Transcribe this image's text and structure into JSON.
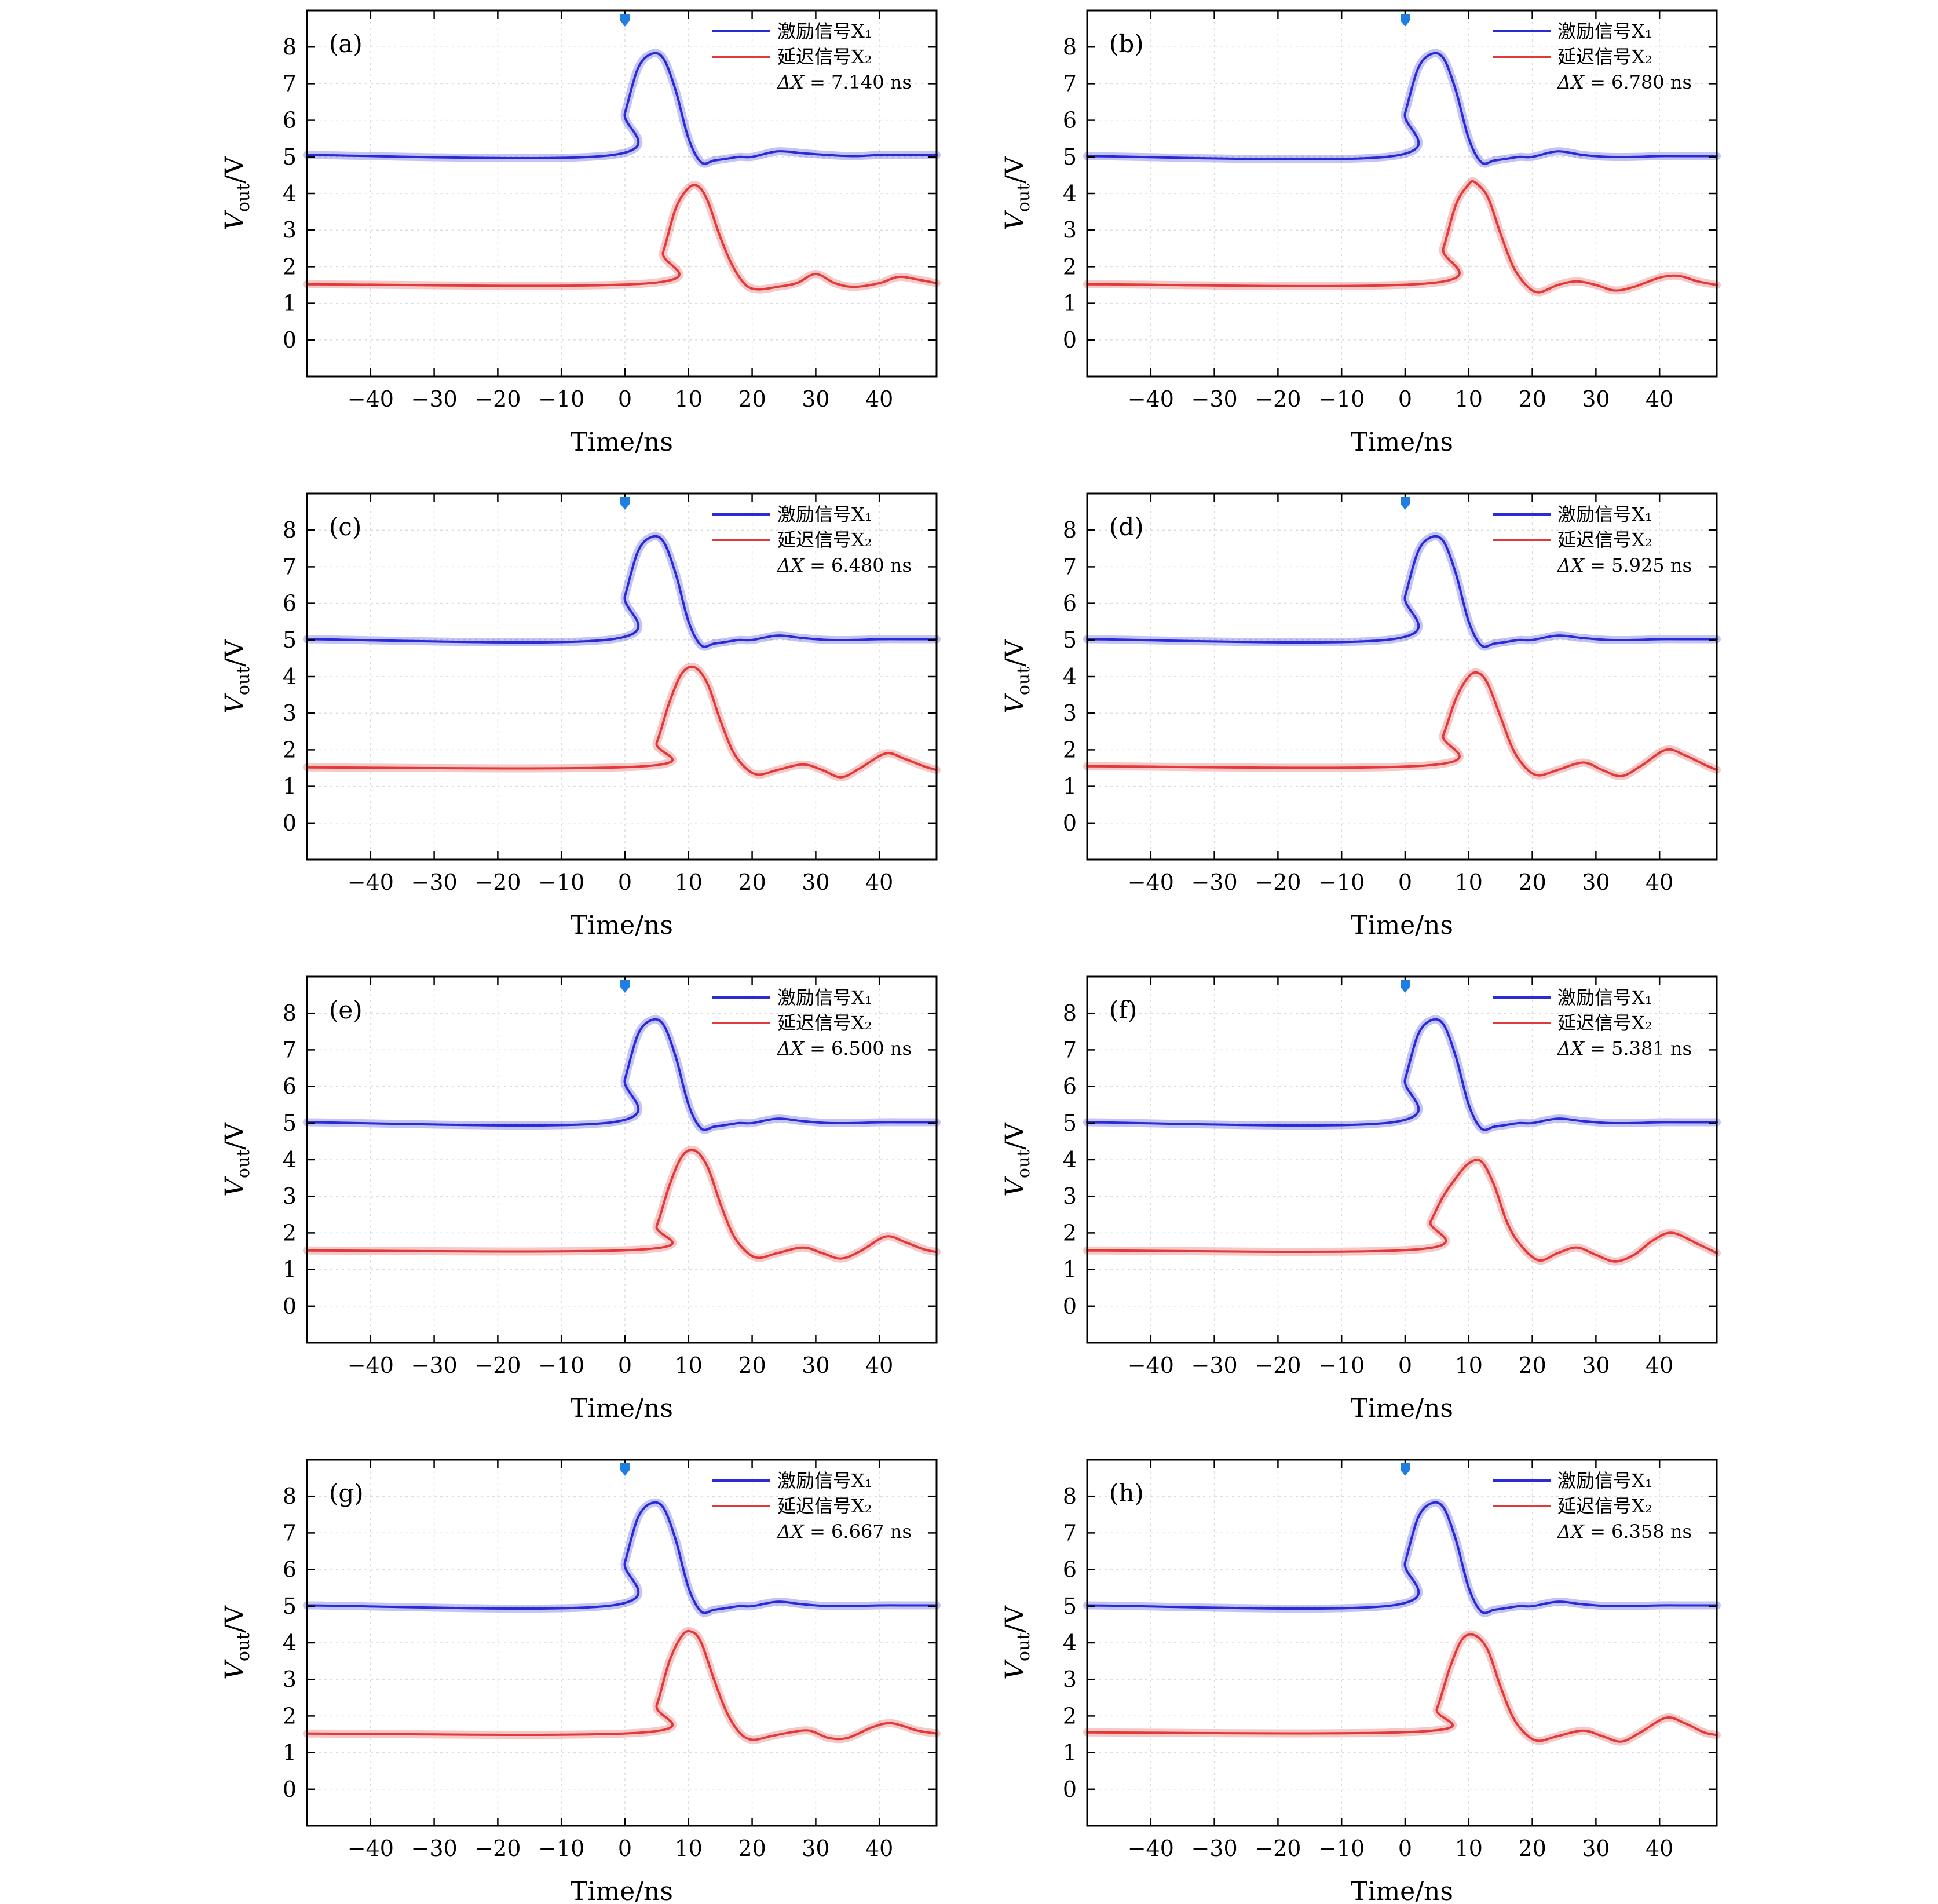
{
  "chart_data": [
    {
      "type": "line",
      "panel_label": "(a)",
      "xlabel": "Time/ns",
      "ylabel_main": "V",
      "ylabel_sub": "out",
      "ylabel_unit": "/V",
      "xlim": [
        -50,
        49
      ],
      "ylim": [
        -1,
        9
      ],
      "x_ticks": [
        -40,
        -30,
        -20,
        -10,
        0,
        10,
        20,
        30,
        40
      ],
      "y_ticks": [
        0,
        1,
        2,
        3,
        4,
        5,
        6,
        7,
        8
      ],
      "grid": true,
      "legend_placement": "top-right",
      "series": [
        {
          "name": "激励信号X₁",
          "color": "#2b2bd6",
          "x": [
            -50,
            -2,
            0,
            2,
            4,
            6,
            8,
            10,
            12,
            14,
            16,
            18,
            20,
            24,
            28,
            32,
            36,
            40,
            45,
            49
          ],
          "y": [
            5.05,
            5.05,
            6.2,
            7.4,
            7.8,
            7.7,
            6.8,
            5.5,
            4.85,
            4.9,
            4.95,
            5.0,
            5.0,
            5.15,
            5.1,
            5.05,
            5.02,
            5.05,
            5.05,
            5.05
          ]
        },
        {
          "name": "延迟信号X₂",
          "color": "#e03a3a",
          "x": [
            -50,
            4,
            6,
            8,
            10,
            11.5,
            13,
            15,
            17,
            19,
            21,
            24,
            27,
            30,
            33,
            36,
            40,
            43,
            46,
            49
          ],
          "y": [
            1.52,
            1.55,
            2.4,
            3.6,
            4.15,
            4.2,
            3.8,
            2.8,
            2.0,
            1.5,
            1.38,
            1.45,
            1.55,
            1.8,
            1.55,
            1.45,
            1.55,
            1.72,
            1.65,
            1.55
          ]
        }
      ],
      "annotation": {
        "label": "ΔX = ",
        "value": "7.140",
        "unit": "ns"
      }
    },
    {
      "type": "line",
      "panel_label": "(b)",
      "xlabel": "Time/ns",
      "ylabel_main": "V",
      "ylabel_sub": "out",
      "ylabel_unit": "/V",
      "xlim": [
        -50,
        49
      ],
      "ylim": [
        -1,
        9
      ],
      "x_ticks": [
        -40,
        -30,
        -20,
        -10,
        0,
        10,
        20,
        30,
        40
      ],
      "y_ticks": [
        0,
        1,
        2,
        3,
        4,
        5,
        6,
        7,
        8
      ],
      "grid": true,
      "legend_placement": "top-right",
      "series": [
        {
          "name": "激励信号X₁",
          "color": "#2b2bd6",
          "x": [
            -50,
            -2,
            0,
            2,
            4,
            6,
            8,
            10,
            12,
            14,
            16,
            18,
            20,
            24,
            28,
            32,
            36,
            40,
            45,
            49
          ],
          "y": [
            5.02,
            5.02,
            6.2,
            7.4,
            7.8,
            7.7,
            6.8,
            5.5,
            4.85,
            4.9,
            4.95,
            5.0,
            5.0,
            5.15,
            5.05,
            5.0,
            5.0,
            5.02,
            5.02,
            5.02
          ]
        },
        {
          "name": "延迟信号X₂",
          "color": "#e03a3a",
          "x": [
            -50,
            4,
            6,
            8,
            10,
            11,
            13,
            15,
            17,
            19,
            21,
            24,
            27,
            30,
            33,
            36,
            40,
            43,
            46,
            49
          ],
          "y": [
            1.52,
            1.55,
            2.5,
            3.7,
            4.25,
            4.3,
            3.9,
            2.9,
            2.0,
            1.5,
            1.3,
            1.5,
            1.6,
            1.5,
            1.35,
            1.45,
            1.7,
            1.75,
            1.6,
            1.5
          ]
        }
      ],
      "annotation": {
        "label": "ΔX = ",
        "value": "6.780",
        "unit": "ns"
      }
    },
    {
      "type": "line",
      "panel_label": "(c)",
      "xlabel": "Time/ns",
      "ylabel_main": "V",
      "ylabel_sub": "out",
      "ylabel_unit": "/V",
      "xlim": [
        -50,
        49
      ],
      "ylim": [
        -1,
        9
      ],
      "x_ticks": [
        -40,
        -30,
        -20,
        -10,
        0,
        10,
        20,
        30,
        40
      ],
      "y_ticks": [
        0,
        1,
        2,
        3,
        4,
        5,
        6,
        7,
        8
      ],
      "grid": true,
      "legend_placement": "top-right",
      "series": [
        {
          "name": "激励信号X₁",
          "color": "#2b2bd6",
          "x": [
            -50,
            -2,
            0,
            2,
            4,
            6,
            8,
            10,
            12,
            14,
            16,
            18,
            20,
            24,
            28,
            32,
            36,
            40,
            45,
            49
          ],
          "y": [
            5.02,
            5.02,
            6.2,
            7.4,
            7.8,
            7.7,
            6.8,
            5.5,
            4.85,
            4.9,
            4.95,
            5.0,
            5.0,
            5.12,
            5.05,
            5.0,
            5.0,
            5.02,
            5.02,
            5.02
          ]
        },
        {
          "name": "延迟信号X₂",
          "color": "#e03a3a",
          "x": [
            -50,
            3,
            5,
            7,
            9,
            11,
            13,
            15,
            17,
            19,
            21,
            24,
            28,
            31,
            34,
            37,
            41,
            44,
            47,
            49
          ],
          "y": [
            1.52,
            1.55,
            2.2,
            3.3,
            4.1,
            4.25,
            3.8,
            2.8,
            1.95,
            1.5,
            1.32,
            1.45,
            1.6,
            1.45,
            1.25,
            1.5,
            1.9,
            1.75,
            1.55,
            1.45
          ]
        }
      ],
      "annotation": {
        "label": "ΔX = ",
        "value": "6.480",
        "unit": "ns"
      }
    },
    {
      "type": "line",
      "panel_label": "(d)",
      "xlabel": "Time/ns",
      "ylabel_main": "V",
      "ylabel_sub": "out",
      "ylabel_unit": "/V",
      "xlim": [
        -50,
        49
      ],
      "ylim": [
        -1,
        9
      ],
      "x_ticks": [
        -40,
        -30,
        -20,
        -10,
        0,
        10,
        20,
        30,
        40
      ],
      "y_ticks": [
        0,
        1,
        2,
        3,
        4,
        5,
        6,
        7,
        8
      ],
      "grid": true,
      "legend_placement": "top-right",
      "series": [
        {
          "name": "激励信号X₁",
          "color": "#2b2bd6",
          "x": [
            -50,
            -2,
            0,
            2,
            4,
            6,
            8,
            10,
            12,
            14,
            16,
            18,
            20,
            24,
            28,
            32,
            36,
            40,
            45,
            49
          ],
          "y": [
            5.02,
            5.02,
            6.2,
            7.4,
            7.8,
            7.7,
            6.8,
            5.5,
            4.85,
            4.9,
            4.95,
            5.0,
            5.0,
            5.12,
            5.05,
            5.0,
            5.0,
            5.02,
            5.02,
            5.02
          ]
        },
        {
          "name": "延迟信号X₂",
          "color": "#e03a3a",
          "x": [
            -50,
            4,
            6,
            8,
            10,
            11.5,
            13,
            15,
            17,
            19,
            21,
            24,
            28,
            31,
            34,
            37,
            41,
            44,
            47,
            49
          ],
          "y": [
            1.55,
            1.58,
            2.4,
            3.4,
            4.0,
            4.1,
            3.8,
            2.9,
            2.0,
            1.5,
            1.3,
            1.45,
            1.65,
            1.45,
            1.28,
            1.55,
            2.0,
            1.85,
            1.6,
            1.45
          ]
        }
      ],
      "annotation": {
        "label": "ΔX = ",
        "value": "5.925",
        "unit": "ns"
      }
    },
    {
      "type": "line",
      "panel_label": "(e)",
      "xlabel": "Time/ns",
      "ylabel_main": "V",
      "ylabel_sub": "out",
      "ylabel_unit": "/V",
      "xlim": [
        -50,
        49
      ],
      "ylim": [
        -1,
        9
      ],
      "x_ticks": [
        -40,
        -30,
        -20,
        -10,
        0,
        10,
        20,
        30,
        40
      ],
      "y_ticks": [
        0,
        1,
        2,
        3,
        4,
        5,
        6,
        7,
        8
      ],
      "grid": true,
      "legend_placement": "top-right",
      "series": [
        {
          "name": "激励信号X₁",
          "color": "#2b2bd6",
          "x": [
            -50,
            -2,
            0,
            2,
            4,
            6,
            8,
            10,
            12,
            14,
            16,
            18,
            20,
            24,
            28,
            32,
            36,
            40,
            45,
            49
          ],
          "y": [
            5.02,
            5.02,
            6.2,
            7.4,
            7.8,
            7.7,
            6.8,
            5.5,
            4.85,
            4.9,
            4.95,
            5.0,
            5.0,
            5.12,
            5.05,
            5.0,
            5.0,
            5.02,
            5.02,
            5.02
          ]
        },
        {
          "name": "延迟信号X₂",
          "color": "#e03a3a",
          "x": [
            -50,
            3,
            5,
            7,
            9,
            11,
            13,
            15,
            17,
            19,
            21,
            24,
            28,
            31,
            34,
            37,
            41,
            44,
            47,
            49
          ],
          "y": [
            1.52,
            1.55,
            2.2,
            3.3,
            4.1,
            4.25,
            3.8,
            2.8,
            1.95,
            1.5,
            1.32,
            1.45,
            1.6,
            1.45,
            1.3,
            1.5,
            1.9,
            1.75,
            1.55,
            1.48
          ]
        }
      ],
      "annotation": {
        "label": "ΔX = ",
        "value": "6.500",
        "unit": "ns"
      }
    },
    {
      "type": "line",
      "panel_label": "(f)",
      "xlabel": "Time/ns",
      "ylabel_main": "V",
      "ylabel_sub": "out",
      "ylabel_unit": "/V",
      "xlim": [
        -50,
        49
      ],
      "ylim": [
        -1,
        9
      ],
      "x_ticks": [
        -40,
        -30,
        -20,
        -10,
        0,
        10,
        20,
        30,
        40
      ],
      "y_ticks": [
        0,
        1,
        2,
        3,
        4,
        5,
        6,
        7,
        8
      ],
      "grid": true,
      "legend_placement": "top-right",
      "series": [
        {
          "name": "激励信号X₁",
          "color": "#2b2bd6",
          "x": [
            -50,
            -2,
            0,
            2,
            4,
            6,
            8,
            10,
            12,
            14,
            16,
            18,
            20,
            24,
            28,
            32,
            36,
            40,
            45,
            49
          ],
          "y": [
            5.02,
            5.02,
            6.2,
            7.4,
            7.8,
            7.7,
            6.8,
            5.5,
            4.85,
            4.9,
            4.95,
            5.0,
            5.0,
            5.12,
            5.05,
            5.0,
            5.0,
            5.02,
            5.02,
            5.02
          ]
        },
        {
          "name": "延迟信号X₂",
          "color": "#e03a3a",
          "x": [
            -50,
            2,
            4,
            6,
            8,
            10,
            12,
            14,
            16,
            18,
            21,
            24,
            27,
            30,
            33,
            36,
            39,
            42,
            46,
            49
          ],
          "y": [
            1.52,
            1.55,
            2.3,
            3.0,
            3.5,
            3.9,
            3.95,
            3.3,
            2.3,
            1.7,
            1.25,
            1.45,
            1.6,
            1.4,
            1.22,
            1.4,
            1.8,
            2.0,
            1.7,
            1.45
          ]
        }
      ],
      "annotation": {
        "label": "ΔX = ",
        "value": "5.381",
        "unit": "ns"
      }
    },
    {
      "type": "line",
      "panel_label": "(g)",
      "xlabel": "Time/ns",
      "ylabel_main": "V",
      "ylabel_sub": "out",
      "ylabel_unit": "/V",
      "xlim": [
        -50,
        49
      ],
      "ylim": [
        -1,
        9
      ],
      "x_ticks": [
        -40,
        -30,
        -20,
        -10,
        0,
        10,
        20,
        30,
        40
      ],
      "y_ticks": [
        0,
        1,
        2,
        3,
        4,
        5,
        6,
        7,
        8
      ],
      "grid": true,
      "legend_placement": "top-right",
      "series": [
        {
          "name": "激励信号X₁",
          "color": "#2b2bd6",
          "x": [
            -50,
            -2,
            0,
            2,
            4,
            6,
            8,
            10,
            12,
            14,
            16,
            18,
            20,
            24,
            28,
            32,
            36,
            40,
            45,
            49
          ],
          "y": [
            5.02,
            5.02,
            6.2,
            7.4,
            7.8,
            7.7,
            6.8,
            5.5,
            4.85,
            4.9,
            4.95,
            5.0,
            5.0,
            5.12,
            5.05,
            5.0,
            5.0,
            5.02,
            5.02,
            5.02
          ]
        },
        {
          "name": "延迟信号X₂",
          "color": "#e03a3a",
          "x": [
            -50,
            3,
            5,
            7,
            9,
            10.5,
            12,
            14,
            16,
            18,
            20,
            23,
            26,
            29,
            32,
            35,
            39,
            42,
            46,
            49
          ],
          "y": [
            1.52,
            1.55,
            2.3,
            3.5,
            4.2,
            4.3,
            4.0,
            3.0,
            2.1,
            1.55,
            1.35,
            1.45,
            1.55,
            1.6,
            1.4,
            1.4,
            1.7,
            1.8,
            1.6,
            1.52
          ]
        }
      ],
      "annotation": {
        "label": "ΔX = ",
        "value": "6.667",
        "unit": "ns"
      }
    },
    {
      "type": "line",
      "panel_label": "(h)",
      "xlabel": "Time/ns",
      "ylabel_main": "V",
      "ylabel_sub": "out",
      "ylabel_unit": "/V",
      "xlim": [
        -50,
        49
      ],
      "ylim": [
        -1,
        9
      ],
      "x_ticks": [
        -40,
        -30,
        -20,
        -10,
        0,
        10,
        20,
        30,
        40
      ],
      "y_ticks": [
        0,
        1,
        2,
        3,
        4,
        5,
        6,
        7,
        8
      ],
      "grid": true,
      "legend_placement": "top-right",
      "series": [
        {
          "name": "激励信号X₁",
          "color": "#2b2bd6",
          "x": [
            -50,
            -2,
            0,
            2,
            4,
            6,
            8,
            10,
            12,
            14,
            16,
            18,
            20,
            24,
            28,
            32,
            36,
            40,
            45,
            49
          ],
          "y": [
            5.02,
            5.02,
            6.2,
            7.4,
            7.8,
            7.7,
            6.8,
            5.5,
            4.85,
            4.9,
            4.95,
            5.0,
            5.0,
            5.12,
            5.05,
            5.0,
            5.0,
            5.02,
            5.02,
            5.02
          ]
        },
        {
          "name": "延迟信号X₂",
          "color": "#e03a3a",
          "x": [
            -50,
            3,
            5,
            7,
            9,
            11,
            13,
            15,
            17,
            19,
            21,
            24,
            28,
            31,
            34,
            37,
            41,
            44,
            47,
            49
          ],
          "y": [
            1.55,
            1.58,
            2.2,
            3.3,
            4.1,
            4.2,
            3.8,
            2.8,
            1.95,
            1.5,
            1.32,
            1.45,
            1.6,
            1.45,
            1.3,
            1.55,
            1.95,
            1.8,
            1.55,
            1.48
          ]
        }
      ],
      "annotation": {
        "label": "ΔX = ",
        "value": "6.358",
        "unit": "ns"
      }
    }
  ]
}
